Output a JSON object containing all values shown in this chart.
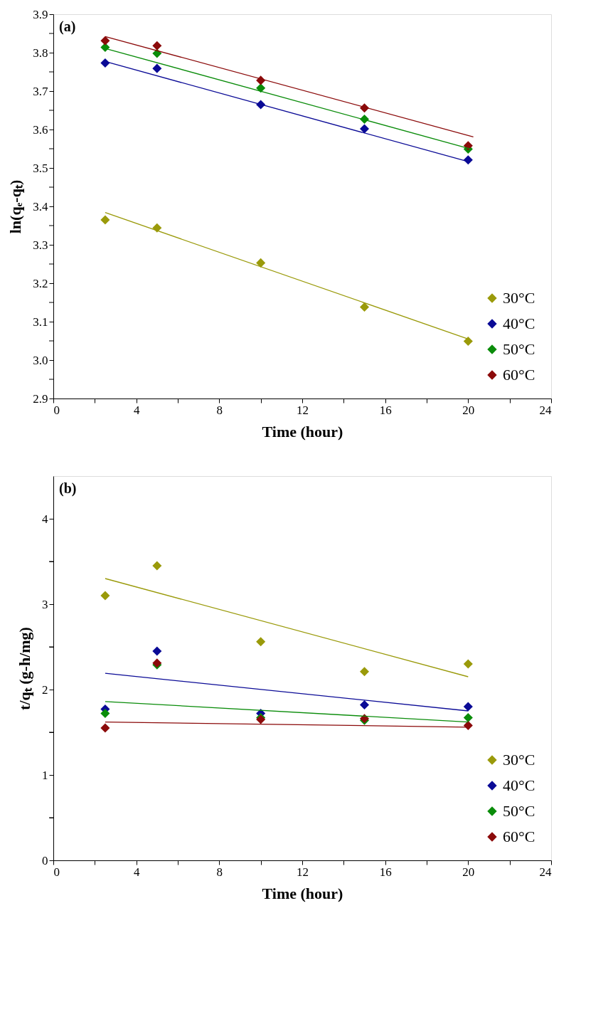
{
  "chart_data": [
    {
      "type": "scatter",
      "title": "(a)",
      "xlabel": "Time (hour)",
      "ylabel": "ln(qₑ-qₜ)",
      "marker": "diamond",
      "legend": "bottom right",
      "grid": false,
      "x": [
        2.5,
        5,
        10,
        15,
        20
      ],
      "xlim": [
        0,
        24
      ],
      "xticks": [
        0,
        {
          "value": 2,
          "label": null
        },
        4,
        {
          "value": 6,
          "label": null
        },
        8,
        {
          "value": 10,
          "label": null
        },
        12,
        {
          "value": 14,
          "label": null
        },
        16,
        {
          "value": 18,
          "label": null
        },
        20,
        {
          "value": 22,
          "label": null
        },
        24
      ],
      "ylim": [
        2.9,
        3.9
      ],
      "yticks": [
        2.9,
        {
          "value": 2.95,
          "label": null
        },
        {
          "value": 3.0,
          "label": "3.0"
        },
        {
          "value": 3.05,
          "label": null
        },
        3.1,
        {
          "value": 3.15,
          "label": null
        },
        3.2,
        {
          "value": 3.25,
          "label": null
        },
        3.3,
        {
          "value": 3.35,
          "label": null
        },
        3.4,
        {
          "value": 3.45,
          "label": null
        },
        3.5,
        {
          "value": 3.55,
          "label": null
        },
        3.6,
        {
          "value": 3.65,
          "label": null
        },
        3.7,
        {
          "value": 3.75,
          "label": null
        },
        3.8,
        {
          "value": 3.85,
          "label": null
        },
        3.9
      ],
      "series": [
        {
          "name": "30°C",
          "color": "#9a9a0a",
          "values": [
            3.365,
            3.344,
            3.253,
            3.138,
            3.049
          ]
        },
        {
          "name": "40°C",
          "color": "#0a0a96",
          "values": [
            3.773,
            3.759,
            3.665,
            3.602,
            3.521
          ]
        },
        {
          "name": "50°C",
          "color": "#0a8c0a",
          "values": [
            3.814,
            3.798,
            3.708,
            3.627,
            3.549
          ]
        },
        {
          "name": "60°C",
          "color": "#8b0a0a",
          "values": [
            3.831,
            3.818,
            3.728,
            3.656,
            3.558
          ]
        },
        {
          "type": "line",
          "marker": "none",
          "line_style": "solid",
          "color": "#9a9a0a",
          "x": [
            2.5,
            20
          ],
          "values": [
            3.384,
            3.055
          ]
        },
        {
          "type": "line",
          "marker": "none",
          "line_style": "solid",
          "color": "#0a0a96",
          "x": [
            2.5,
            20.1
          ],
          "values": [
            3.777,
            3.515
          ]
        },
        {
          "type": "line",
          "marker": "none",
          "line_style": "solid",
          "color": "#0a8c0a",
          "x": [
            2.5,
            20.15
          ],
          "values": [
            3.811,
            3.549
          ]
        },
        {
          "type": "line",
          "marker": "none",
          "line_style": "solid",
          "color": "#8b0a0a",
          "x": [
            2.5,
            20.25
          ],
          "values": [
            3.842,
            3.581
          ]
        }
      ]
    },
    {
      "type": "scatter",
      "title": "(b)",
      "xlabel": "Time (hour)",
      "ylabel": "t/qₜ  (g-h/mg)",
      "marker": "diamond",
      "legend": "bottom right",
      "grid": false,
      "x": [
        2.5,
        5,
        10,
        15,
        20
      ],
      "xlim": [
        0,
        24
      ],
      "xticks": [
        0,
        {
          "value": 2,
          "label": null
        },
        4,
        {
          "value": 6,
          "label": null
        },
        8,
        {
          "value": 10,
          "label": null
        },
        12,
        {
          "value": 14,
          "label": null
        },
        16,
        {
          "value": 18,
          "label": null
        },
        20,
        {
          "value": 22,
          "label": null
        },
        24
      ],
      "ylim": [
        0,
        4.5
      ],
      "yticks": [
        0,
        {
          "value": 0.5,
          "label": null
        },
        1,
        {
          "value": 1.5,
          "label": null
        },
        2,
        {
          "value": 2.5,
          "label": null
        },
        3,
        {
          "value": 3.5,
          "label": null
        },
        4
      ],
      "series": [
        {
          "name": "30°C",
          "color": "#9a9a0a",
          "values": [
            3.1,
            3.45,
            2.56,
            2.21,
            2.3
          ]
        },
        {
          "name": "40°C",
          "color": "#0a0a96",
          "values": [
            1.77,
            2.45,
            1.72,
            1.82,
            1.8
          ]
        },
        {
          "name": "50°C",
          "color": "#0a8c0a",
          "values": [
            1.72,
            2.29,
            1.67,
            1.64,
            1.67
          ]
        },
        {
          "name": "60°C",
          "color": "#8b0a0a",
          "values": [
            1.55,
            2.31,
            1.65,
            1.66,
            1.58
          ]
        },
        {
          "type": "line",
          "marker": "none",
          "line_style": "solid",
          "color": "#9a9a0a",
          "x": [
            2.5,
            20
          ],
          "values": [
            3.3,
            2.15
          ]
        },
        {
          "type": "line",
          "marker": "none",
          "line_style": "solid",
          "color": "#0a0a96",
          "x": [
            2.5,
            20
          ],
          "values": [
            2.19,
            1.75
          ]
        },
        {
          "type": "line",
          "marker": "none",
          "line_style": "solid",
          "color": "#0a8c0a",
          "x": [
            2.5,
            20
          ],
          "values": [
            1.86,
            1.62
          ]
        },
        {
          "type": "line",
          "marker": "none",
          "line_style": "solid",
          "color": "#8b0a0a",
          "x": [
            2.5,
            20
          ],
          "values": [
            1.62,
            1.56
          ]
        }
      ]
    }
  ]
}
